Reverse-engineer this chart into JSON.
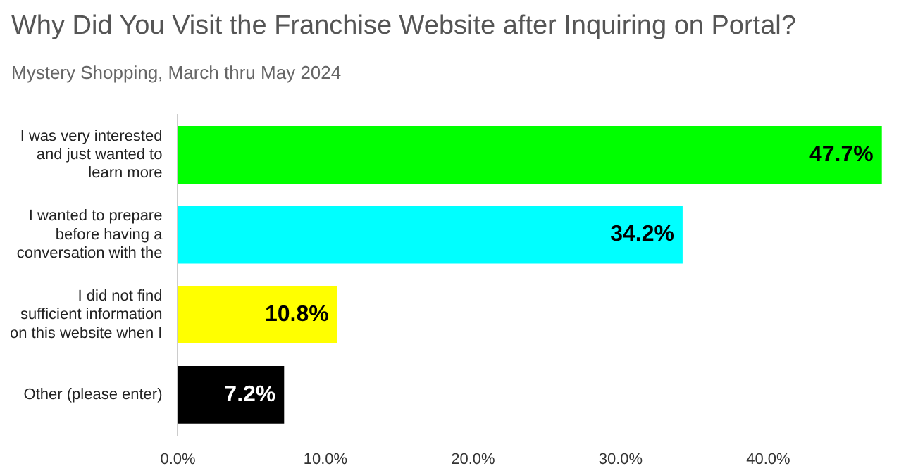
{
  "chart_data": {
    "type": "bar",
    "orientation": "horizontal",
    "title": "Why Did You Visit the Franchise Website after Inquiring on Portal?",
    "subtitle": "Mystery Shopping, March thru May 2024",
    "categories": [
      "I was very interested and just wanted to learn more",
      "I wanted to prepare before having a conversation with the",
      "I did not find sufficient information on this website when I",
      "Other (please enter)"
    ],
    "values": [
      47.7,
      34.2,
      10.8,
      7.2
    ],
    "colors": [
      "#00ff00",
      "#00ffff",
      "#ffff00",
      "#000000"
    ],
    "value_labels": [
      "47.7%",
      "34.2%",
      "10.8%",
      "7.2%"
    ],
    "xlim": [
      0,
      48
    ],
    "xticks": [
      {
        "value": 0,
        "label": "0.0%"
      },
      {
        "value": 10,
        "label": "10.0%"
      },
      {
        "value": 20,
        "label": "20.0%"
      },
      {
        "value": 30,
        "label": "30.0%"
      },
      {
        "value": 40,
        "label": "40.0%"
      }
    ],
    "grid": false,
    "legend": false
  }
}
